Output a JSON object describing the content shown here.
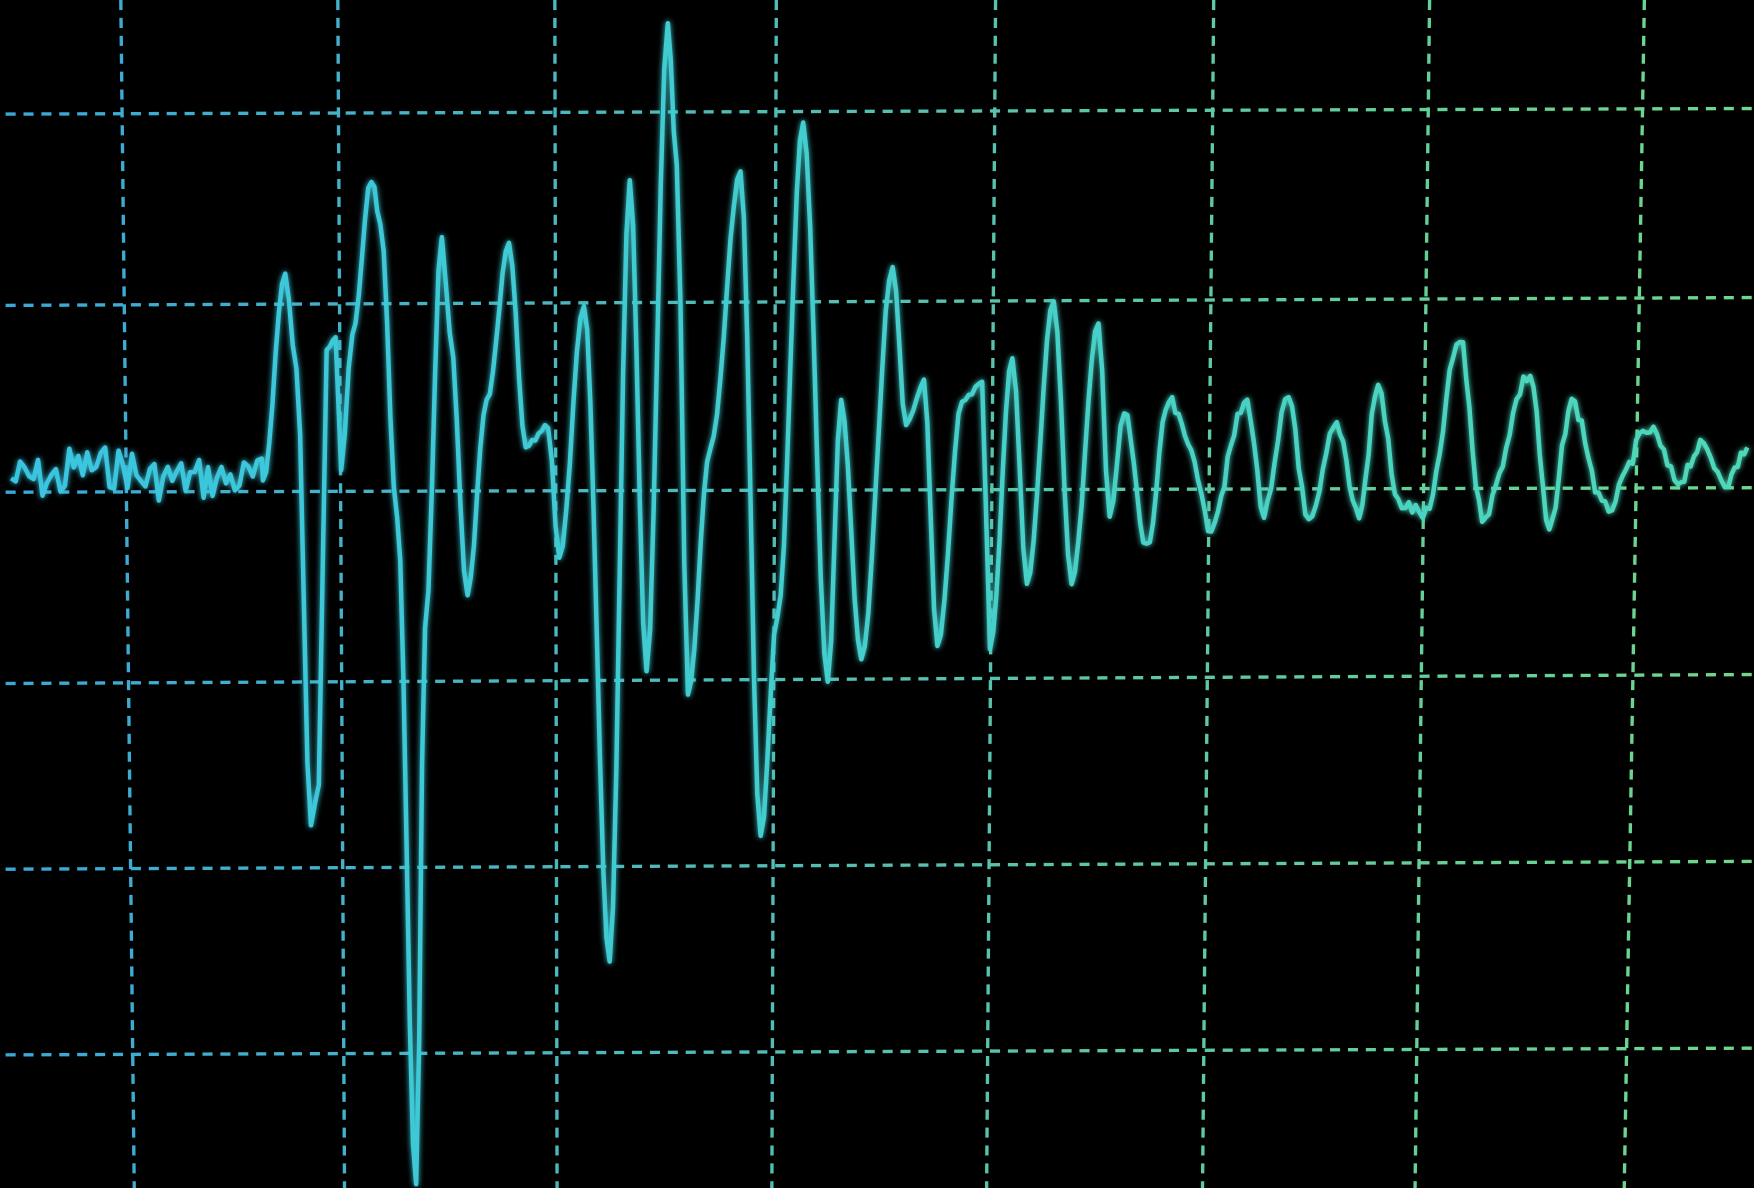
{
  "scene": {
    "subject": "oscilloscope-waveform-photo",
    "colors": {
      "background": "#000000",
      "grid_left": "#3aa8d8",
      "grid_right": "#6fd88a",
      "trace_left": "#39c4e0",
      "trace_right": "#4fd8b8"
    },
    "grid": {
      "vertical_lines": 8,
      "horizontal_lines": 6,
      "style": "dashed"
    }
  }
}
